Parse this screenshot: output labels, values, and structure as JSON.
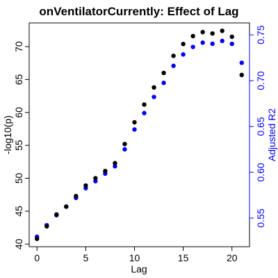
{
  "chart_data": {
    "type": "scatter",
    "title": "onVentilatorCurrently: Effect of Lag",
    "xlabel": "Lag",
    "ylabel": "-log10(p)",
    "y2label": "Adjusted R2",
    "xlim": [
      -0.8,
      21.8
    ],
    "ylim": [
      39.6,
      73.6
    ],
    "y2lim": [
      0.5188,
      0.763
    ],
    "x_ticks": [
      0,
      5,
      10,
      15,
      20
    ],
    "y_ticks": [
      40,
      45,
      50,
      55,
      60,
      65,
      70
    ],
    "y2_ticks": [
      0.55,
      0.6,
      0.65,
      0.7,
      0.75
    ],
    "y2_axis_color": "#0000ff",
    "grid": false,
    "series": [
      {
        "axis": "left",
        "color": "#000000",
        "x": [
          0,
          1,
          2,
          3,
          4,
          5,
          6,
          7,
          8,
          9,
          10,
          11,
          12,
          13,
          14,
          15,
          16,
          17,
          18,
          19,
          20,
          21
        ],
        "values": [
          40.8,
          42.7,
          44.5,
          45.7,
          47.3,
          48.9,
          50.0,
          51.1,
          52.3,
          55.2,
          58.5,
          61.2,
          63.8,
          66.0,
          68.6,
          70.4,
          71.6,
          72.2,
          72.0,
          72.4,
          71.5,
          65.7
        ]
      },
      {
        "axis": "right",
        "color": "#0000ff",
        "x": [
          0,
          1,
          2,
          3,
          4,
          5,
          6,
          7,
          8,
          9,
          10,
          11,
          12,
          13,
          14,
          15,
          16,
          17,
          18,
          19,
          20,
          21
        ],
        "values": [
          0.5297,
          0.5423,
          0.5532,
          0.5625,
          0.5721,
          0.5827,
          0.5903,
          0.5985,
          0.6066,
          0.6251,
          0.6467,
          0.6646,
          0.6822,
          0.6976,
          0.7162,
          0.7286,
          0.7368,
          0.7415,
          0.7403,
          0.7434,
          0.7402,
          0.7195
        ]
      }
    ]
  }
}
